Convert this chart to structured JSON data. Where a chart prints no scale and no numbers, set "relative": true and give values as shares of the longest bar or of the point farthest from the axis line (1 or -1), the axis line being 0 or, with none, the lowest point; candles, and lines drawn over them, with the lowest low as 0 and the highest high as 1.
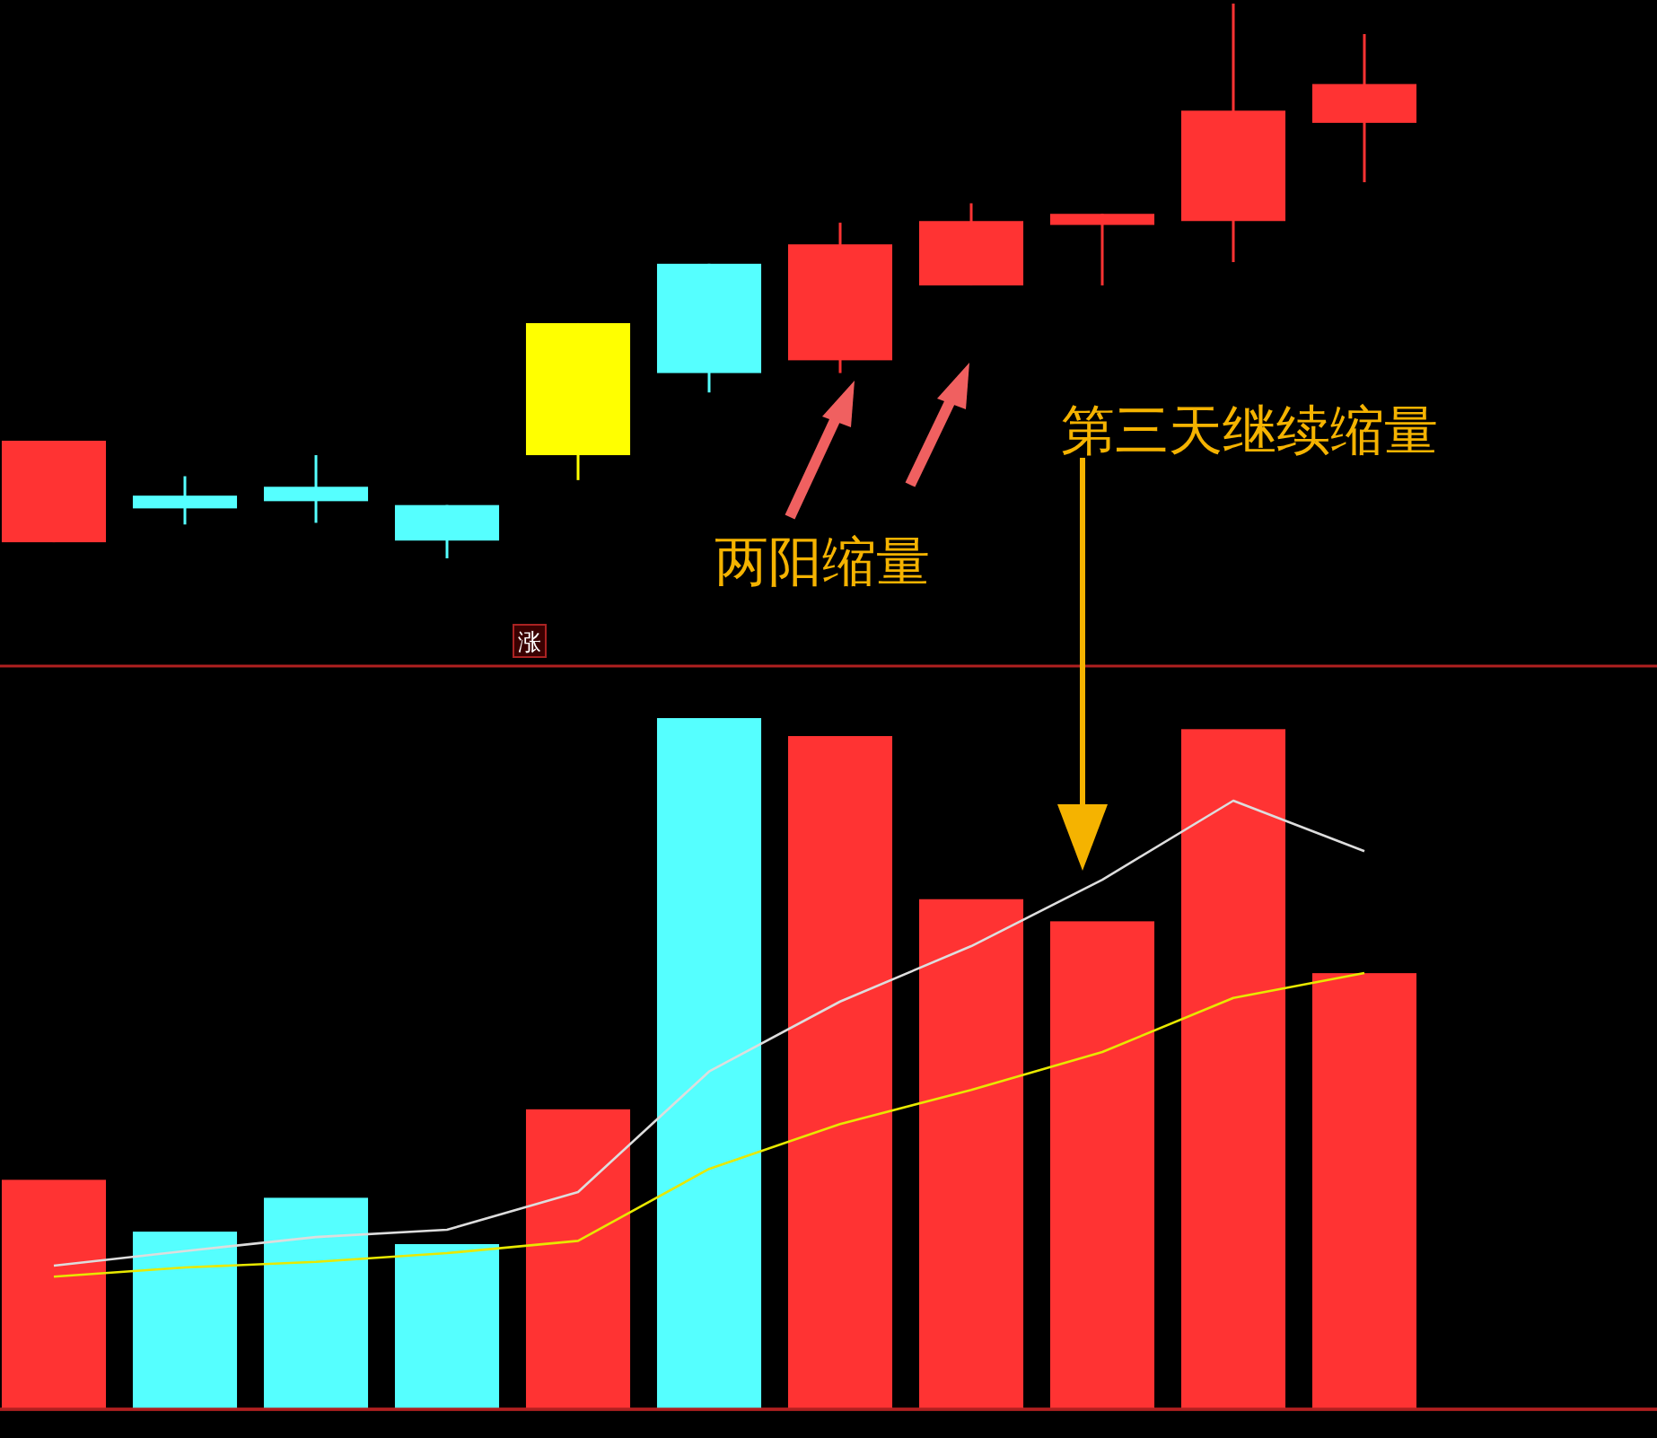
{
  "chart_data": [
    {
      "type": "candlestick",
      "relative": true,
      "categories": [
        null,
        null,
        null,
        null,
        null,
        null,
        null,
        null,
        null,
        null,
        null
      ],
      "ohlc": [
        [
          0.029,
          0.212,
          0.029,
          0.212
        ],
        [
          0.113,
          0.148,
          0.061,
          0.09
        ],
        [
          0.129,
          0.186,
          0.064,
          0.103
        ],
        [
          0.096,
          0.096,
          0.0,
          0.032
        ],
        [
          0.186,
          0.424,
          0.141,
          0.424
        ],
        [
          0.531,
          0.531,
          0.299,
          0.334
        ],
        [
          0.357,
          0.605,
          0.334,
          0.566
        ],
        [
          0.492,
          0.64,
          0.492,
          0.608
        ],
        [
          0.601,
          0.621,
          0.492,
          0.621
        ],
        [
          0.608,
          1.0,
          0.534,
          0.807
        ],
        [
          0.785,
          0.945,
          0.678,
          0.855
        ]
      ],
      "colors": [
        "#ff3333",
        "#55ffff",
        "#55ffff",
        "#55ffff",
        "#ffff00",
        "#55ffff",
        "#ff3333",
        "#ff3333",
        "#ff3333",
        "#ff3333",
        "#ff3333"
      ],
      "annotations": [
        "两阳缩量",
        "第三天继续缩量",
        "涨"
      ]
    },
    {
      "type": "bar",
      "relative": true,
      "categories": [
        null,
        null,
        null,
        null,
        null,
        null,
        null,
        null,
        null,
        null,
        null
      ],
      "values": [
        0.332,
        0.257,
        0.306,
        0.239,
        0.434,
        1.0,
        0.974,
        0.738,
        0.706,
        0.984,
        0.631
      ],
      "colors": [
        "#ff3333",
        "#55ffff",
        "#55ffff",
        "#55ffff",
        "#ff3333",
        "#55ffff",
        "#ff3333",
        "#ff3333",
        "#ff3333",
        "#ff3333",
        "#ff3333"
      ]
    },
    {
      "type": "line",
      "relative": true,
      "categories": [
        null,
        null,
        null,
        null,
        null,
        null,
        null,
        null,
        null,
        null,
        null
      ],
      "series": [
        {
          "color": "#dddddd",
          "values": [
            0.236,
            0.26,
            0.283,
            0.295,
            0.357,
            0.555,
            0.67,
            0.761,
            0.87,
            1.0,
            0.917
          ]
        }
      ]
    },
    {
      "type": "line",
      "relative": true,
      "categories": [
        null,
        null,
        null,
        null,
        null,
        null,
        null,
        null,
        null,
        null,
        null
      ],
      "series": [
        {
          "color": "#e8e800",
          "values": [
            0.304,
            0.325,
            0.338,
            0.358,
            0.386,
            0.551,
            0.654,
            0.732,
            0.819,
            0.943,
            1.0
          ]
        }
      ]
    }
  ]
}
